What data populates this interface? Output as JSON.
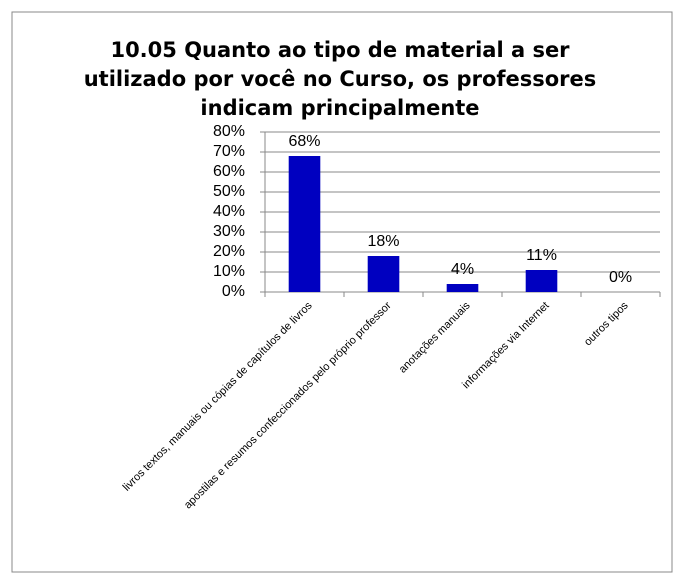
{
  "chart_data": {
    "type": "bar",
    "title": "10.05 Quanto ao tipo de material a ser utilizado por você no Curso, os professores indicam principalmente",
    "categories": [
      "livros textos, manuais ou cópias de capítulos de livros",
      "apostilas e resumos confeccionados pelo próprio professor",
      "anotações manuais",
      "informações via Internet",
      "outros tipos"
    ],
    "values": [
      68,
      18,
      4,
      11,
      0
    ],
    "value_labels": [
      "68%",
      "18%",
      "4%",
      "11%",
      "0%"
    ],
    "color": "#0000c0",
    "ylim": [
      0,
      80
    ],
    "yticks": [
      {
        "value": 0,
        "label": "0%"
      },
      {
        "value": 10,
        "label": "10%"
      },
      {
        "value": 20,
        "label": "20%"
      },
      {
        "value": 30,
        "label": "30%"
      },
      {
        "value": 40,
        "label": "40%"
      },
      {
        "value": 50,
        "label": "50%"
      },
      {
        "value": 60,
        "label": "60%"
      },
      {
        "value": 70,
        "label": "70%"
      },
      {
        "value": 80,
        "label": "80%"
      }
    ],
    "grid": true
  }
}
